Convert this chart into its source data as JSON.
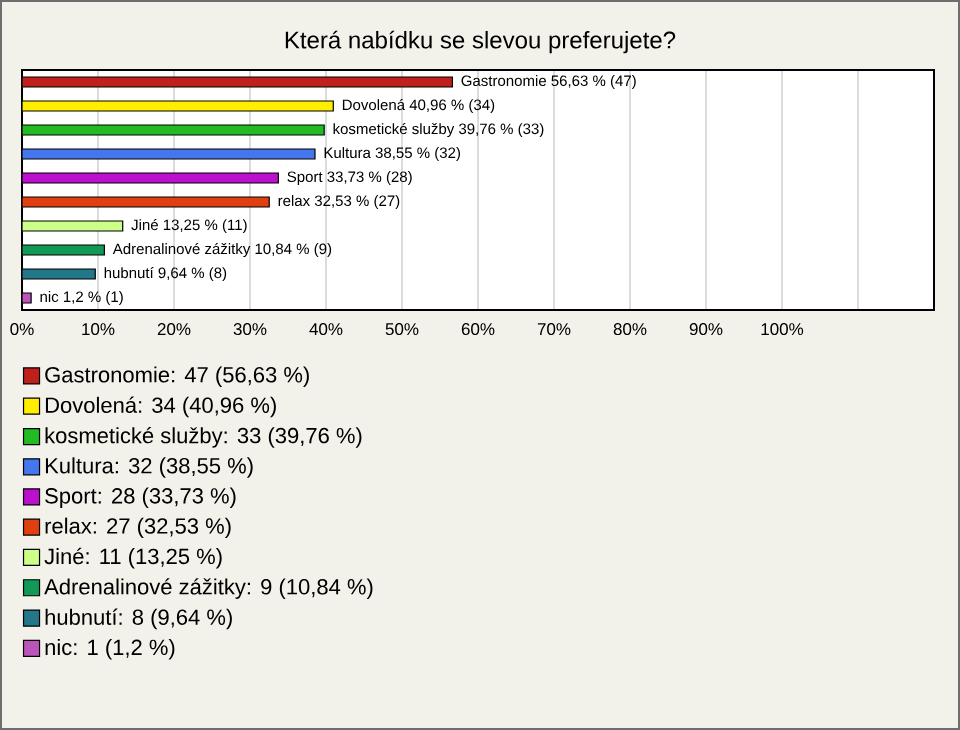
{
  "chart_data": {
    "type": "bar",
    "orientation": "horizontal",
    "title": "Která nabídku se slevou preferujete?",
    "categories": [
      null,
      null,
      null,
      null,
      null,
      null,
      null,
      null,
      null,
      null
    ],
    "xlim": [
      0,
      120
    ],
    "xticks": [
      {
        "value": 0,
        "label": "0%"
      },
      {
        "value": 10,
        "label": "10%"
      },
      {
        "value": 20,
        "label": "20%"
      },
      {
        "value": 30,
        "label": "30%"
      },
      {
        "value": 40,
        "label": "40%"
      },
      {
        "value": 50,
        "label": "50%"
      },
      {
        "value": 60,
        "label": "60%"
      },
      {
        "value": 70,
        "label": "70%"
      },
      {
        "value": 80,
        "label": "80%"
      },
      {
        "value": 90,
        "label": "90%"
      },
      {
        "value": 100,
        "label": "100%"
      },
      {
        "value": 110,
        "label": null
      },
      {
        "value": 120,
        "label": null
      }
    ],
    "grid": "x",
    "tick_labels": "x",
    "legend": "bottom",
    "series": [
      {
        "name": "Gastronomie: 47 (56,63 %)",
        "color": "#c0201a",
        "values": [
          56.63,
          null,
          null,
          null,
          null,
          null,
          null,
          null,
          null,
          null
        ],
        "value_labels": [
          "Gastronomie 56,63 % (47)",
          null,
          null,
          null,
          null,
          null,
          null,
          null,
          null,
          null
        ]
      },
      {
        "name": "Dovolená: 34 (40,96 %)",
        "color": "#ffee00",
        "values": [
          null,
          40.96,
          null,
          null,
          null,
          null,
          null,
          null,
          null,
          null
        ],
        "value_labels": [
          null,
          "Dovolená 40,96 % (34)",
          null,
          null,
          null,
          null,
          null,
          null,
          null,
          null
        ]
      },
      {
        "name": "kosmetické služby: 33 (39,76 %)",
        "color": "#22bb22",
        "values": [
          null,
          null,
          39.76,
          null,
          null,
          null,
          null,
          null,
          null,
          null
        ],
        "value_labels": [
          null,
          null,
          "kosmetické služby 39,76 % (33)",
          null,
          null,
          null,
          null,
          null,
          null,
          null
        ]
      },
      {
        "name": "Kultura: 32 (38,55 %)",
        "color": "#4477ee",
        "values": [
          null,
          null,
          null,
          38.55,
          null,
          null,
          null,
          null,
          null,
          null
        ],
        "value_labels": [
          null,
          null,
          null,
          "Kultura 38,55 % (32)",
          null,
          null,
          null,
          null,
          null,
          null
        ]
      },
      {
        "name": "Sport: 28 (33,73 %)",
        "color": "#bb11cc",
        "values": [
          null,
          null,
          null,
          null,
          33.73,
          null,
          null,
          null,
          null,
          null
        ],
        "value_labels": [
          null,
          null,
          null,
          null,
          "Sport 33,73 % (28)",
          null,
          null,
          null,
          null,
          null
        ]
      },
      {
        "name": "relax: 27 (32,53 %)",
        "color": "#e04010",
        "values": [
          null,
          null,
          null,
          null,
          null,
          32.53,
          null,
          null,
          null,
          null
        ],
        "value_labels": [
          null,
          null,
          null,
          null,
          null,
          "relax 32,53 % (27)",
          null,
          null,
          null,
          null
        ]
      },
      {
        "name": "Jiné: 11 (13,25 %)",
        "color": "#ccff88",
        "values": [
          null,
          null,
          null,
          null,
          null,
          null,
          13.25,
          null,
          null,
          null
        ],
        "value_labels": [
          null,
          null,
          null,
          null,
          null,
          null,
          "Jiné 13,25 % (11)",
          null,
          null,
          null
        ]
      },
      {
        "name": "Adrenalinové zážitky: 9 (10,84 %)",
        "color": "#119955",
        "values": [
          null,
          null,
          null,
          null,
          null,
          null,
          null,
          10.84,
          null,
          null
        ],
        "value_labels": [
          null,
          null,
          null,
          null,
          null,
          null,
          null,
          "Adrenalinové zážitky 10,84 % (9)",
          null,
          null
        ]
      },
      {
        "name": "hubnutí: 8 (9,64 %)",
        "color": "#227788",
        "values": [
          null,
          null,
          null,
          null,
          null,
          null,
          null,
          null,
          9.64,
          null
        ],
        "value_labels": [
          null,
          null,
          null,
          null,
          null,
          null,
          null,
          null,
          "hubnutí 9,64 % (8)",
          null
        ]
      },
      {
        "name": "nic: 1 (1,2 %)",
        "color": "#bb55bb",
        "values": [
          null,
          null,
          null,
          null,
          null,
          null,
          null,
          null,
          null,
          1.2
        ],
        "value_labels": [
          null,
          null,
          null,
          null,
          null,
          null,
          null,
          null,
          null,
          "nic 1,2 % (1)"
        ]
      }
    ]
  }
}
